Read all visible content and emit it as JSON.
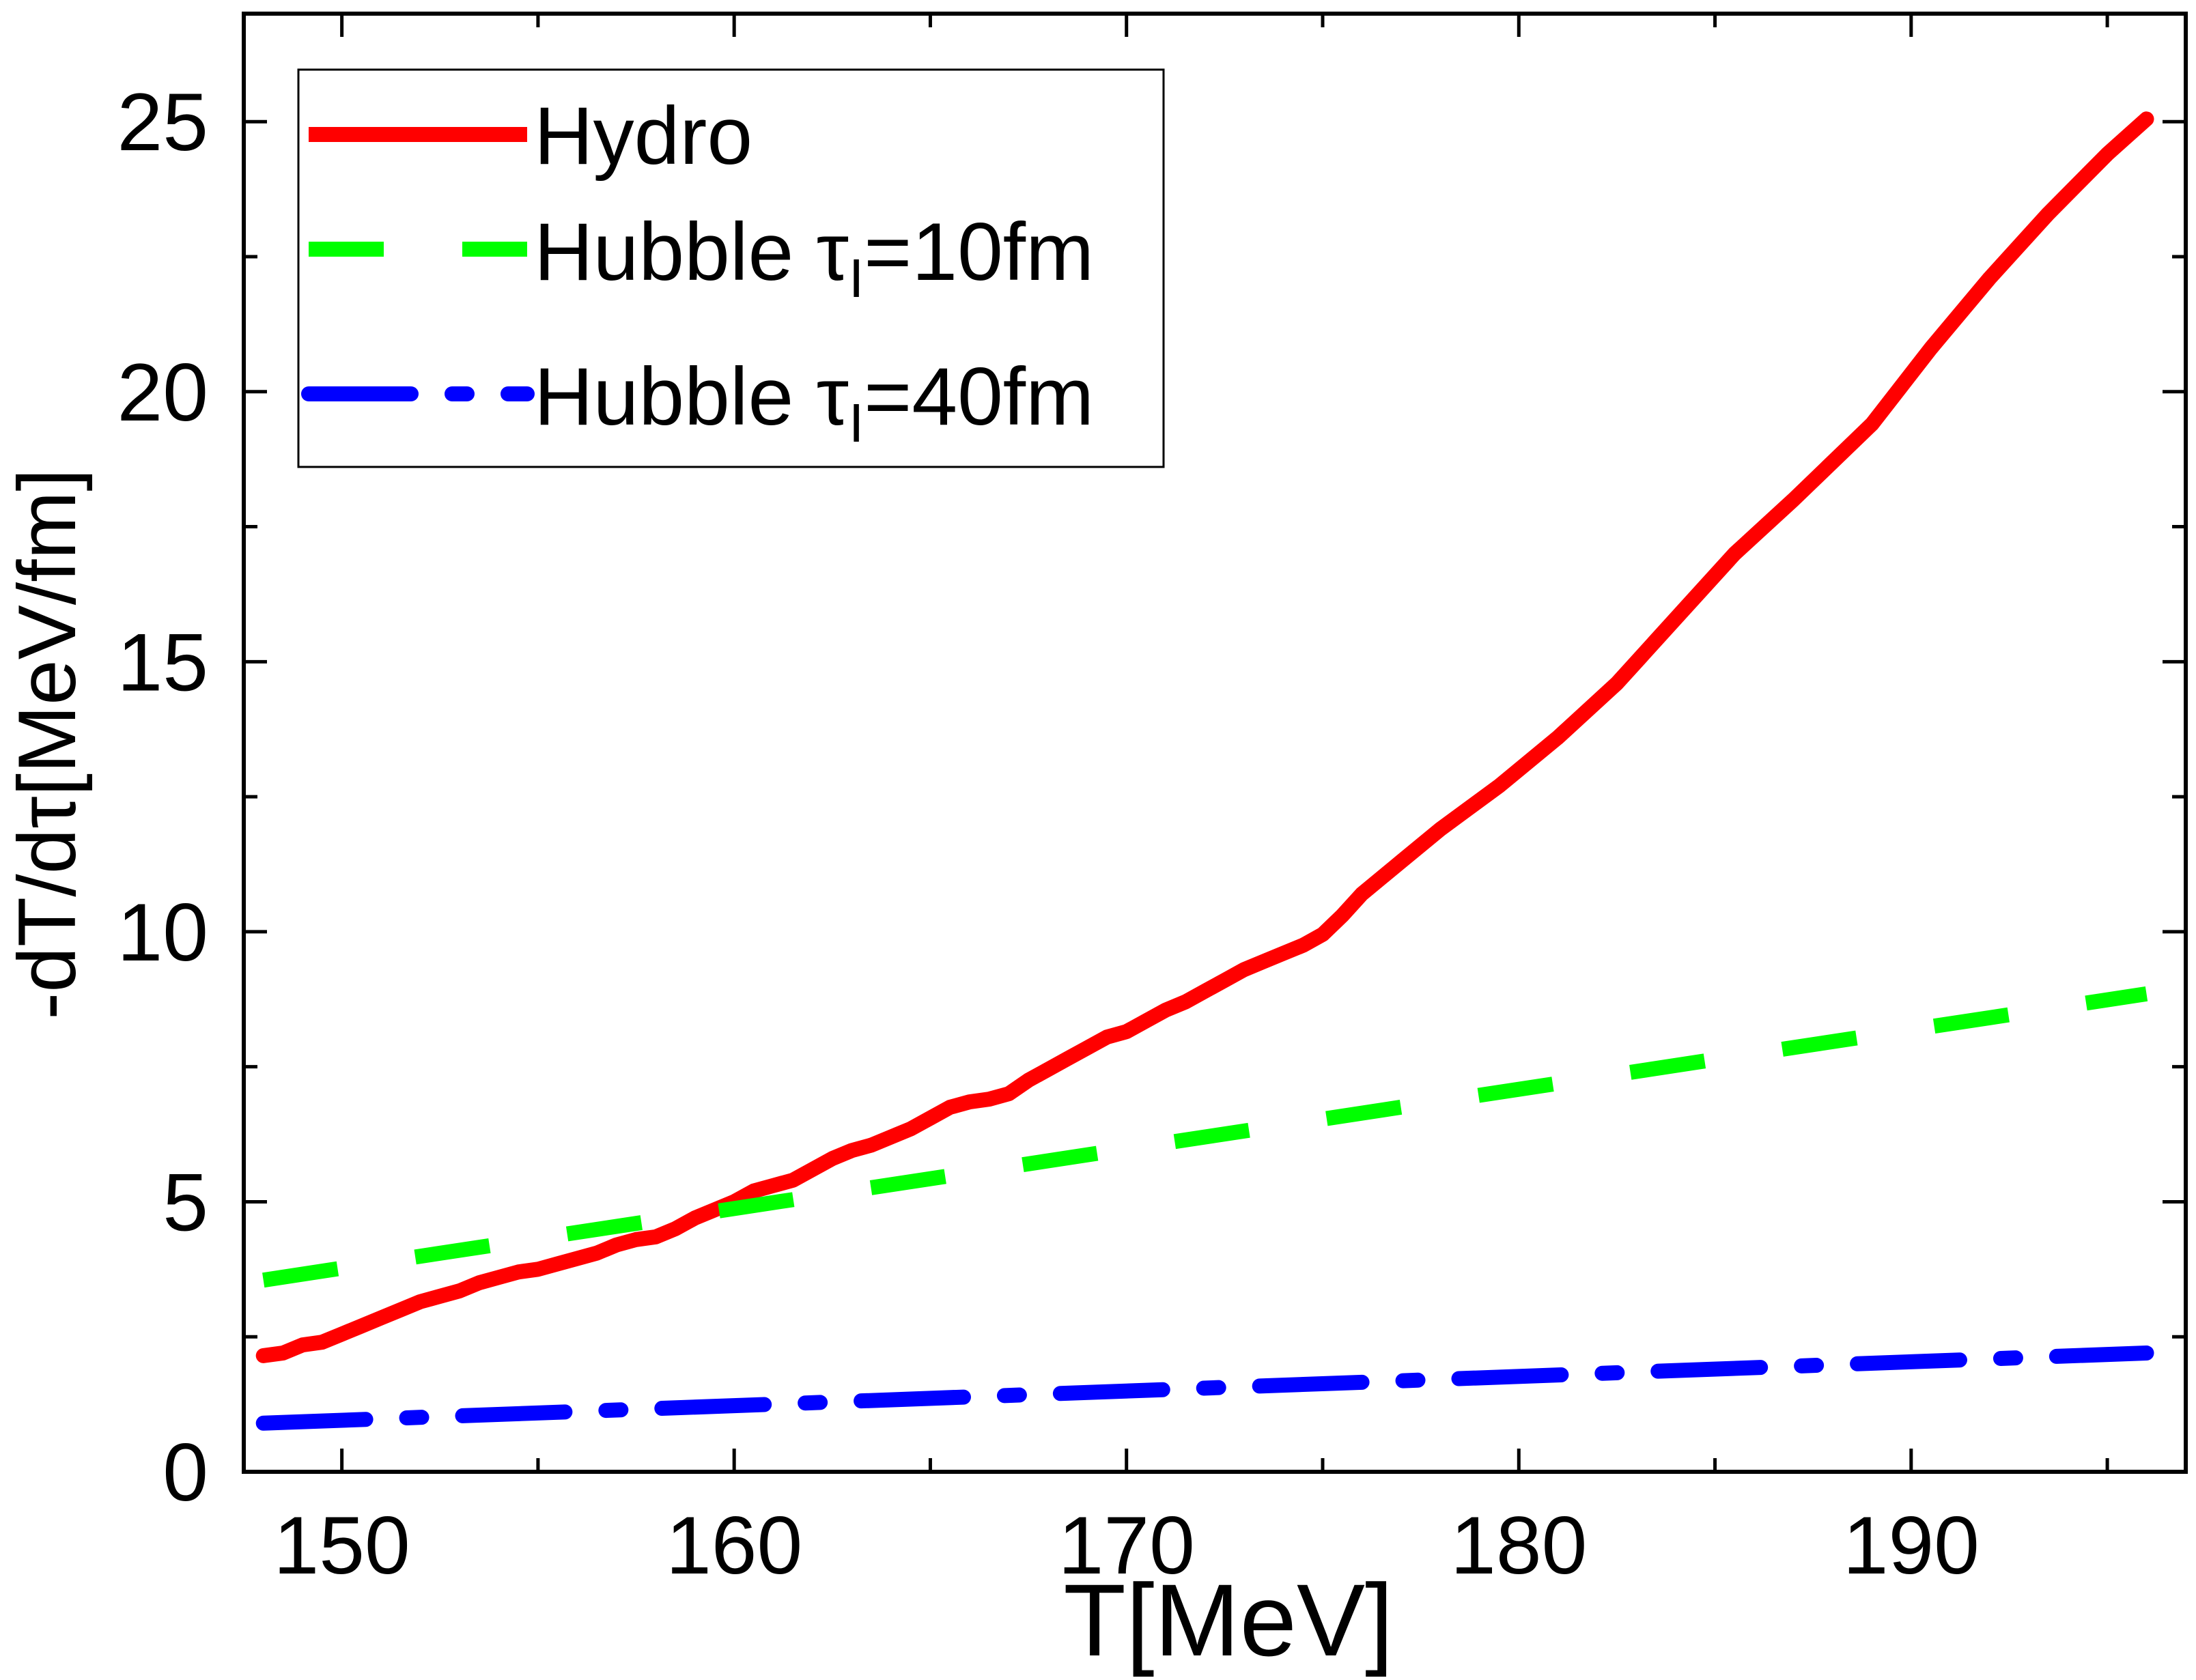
{
  "chart_data": {
    "type": "line",
    "xlabel": "T[MeV]",
    "ylabel": "-dT/dτ[MeV/fm]",
    "xlim": [
      147.5,
      197
    ],
    "ylim": [
      0,
      27
    ],
    "xticks": [
      150,
      160,
      170,
      180,
      190
    ],
    "yticks": [
      0,
      5,
      10,
      15,
      20,
      25
    ],
    "legend_position": "top-left",
    "series": [
      {
        "name": "Hydro",
        "style": "solid",
        "color": "#ff0000",
        "x": [
          148,
          148.5,
          149,
          149.5,
          150,
          150.5,
          151,
          151.5,
          152,
          152.5,
          153,
          153.5,
          154,
          154.5,
          155,
          155.5,
          156,
          156.5,
          157,
          157.5,
          158,
          158.5,
          159,
          159.5,
          160,
          160.5,
          161,
          161.5,
          162,
          162.5,
          163,
          163.5,
          164,
          164.5,
          165,
          165.5,
          166,
          166.5,
          167,
          167.5,
          168,
          168.5,
          169,
          169.5,
          170,
          170.5,
          171,
          171.5,
          172,
          172.5,
          173,
          173.5,
          174,
          174.5,
          175,
          175.5,
          176,
          177,
          178,
          179.5,
          181,
          182.5,
          184,
          185.5,
          187,
          189,
          190.5,
          192,
          193.5,
          195,
          196
        ],
        "y": [
          2.15,
          2.2,
          2.35,
          2.4,
          2.55,
          2.7,
          2.85,
          3.0,
          3.15,
          3.25,
          3.35,
          3.5,
          3.6,
          3.7,
          3.75,
          3.85,
          3.95,
          4.05,
          4.2,
          4.3,
          4.35,
          4.5,
          4.7,
          4.85,
          5.0,
          5.2,
          5.3,
          5.4,
          5.6,
          5.8,
          5.95,
          6.05,
          6.2,
          6.35,
          6.55,
          6.75,
          6.85,
          6.9,
          7.0,
          7.25,
          7.45,
          7.65,
          7.85,
          8.05,
          8.15,
          8.35,
          8.55,
          8.7,
          8.9,
          9.1,
          9.3,
          9.45,
          9.6,
          9.75,
          9.95,
          10.3,
          10.7,
          11.3,
          11.9,
          12.7,
          13.6,
          14.6,
          15.8,
          17.0,
          18.0,
          19.4,
          20.8,
          22.1,
          23.3,
          24.4,
          25.05
        ]
      },
      {
        "name": "Hubble τI=10fm",
        "style": "dashed",
        "color": "#00ff00",
        "x": [
          148,
          196
        ],
        "y": [
          3.55,
          8.85
        ]
      },
      {
        "name": "Hubble τI=40fm",
        "style": "dashdot",
        "color": "#0000ff",
        "x": [
          148,
          196
        ],
        "y": [
          0.9,
          2.2
        ]
      }
    ]
  },
  "legend": {
    "entries": [
      {
        "label_main": "Hydro",
        "label_sub": "",
        "label_tail": ""
      },
      {
        "label_main": "Hubble τ",
        "label_sub": "I",
        "label_tail": "=10fm"
      },
      {
        "label_main": "Hubble τ",
        "label_sub": "I",
        "label_tail": "=40fm"
      }
    ]
  }
}
